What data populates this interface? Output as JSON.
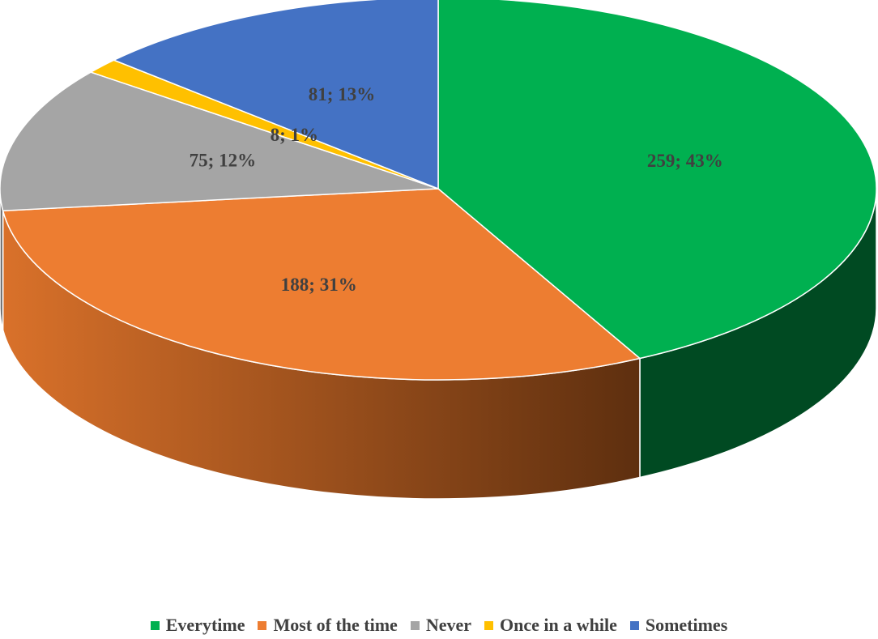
{
  "chart_data": {
    "type": "pie",
    "three_d": true,
    "legend_position": "bottom",
    "labels": [
      "Everytime",
      "Most of the time",
      "Never",
      "Once in a while",
      "Sometimes"
    ],
    "values": [
      259,
      188,
      75,
      8,
      81
    ],
    "percents": [
      43,
      31,
      12,
      1,
      13
    ],
    "data_labels": [
      "259; 43%",
      "188; 31%",
      "75; 12%",
      "8; 1%",
      "81; 13%"
    ],
    "colors": [
      "#00b050",
      "#ed7d31",
      "#a5a5a5",
      "#ffc000",
      "#4472c4"
    ],
    "side_colors": [
      "#004a22",
      "#a4531e",
      "#6f6f6f",
      "#b48800",
      "#2b4d8a"
    ]
  }
}
